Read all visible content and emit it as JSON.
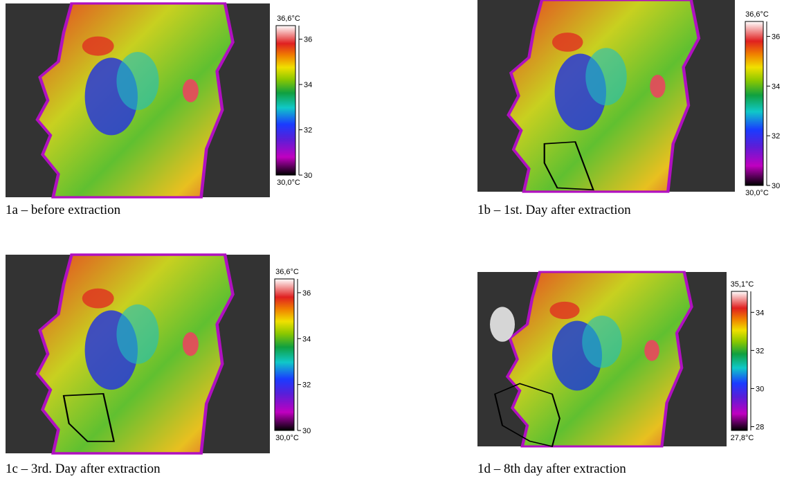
{
  "panels": [
    {
      "caption": "1a – before  extraction",
      "scale": {
        "range": [
          {
            "value": 30.0,
            "label": "30,0°C"
          },
          {
            "value": 36.6,
            "label": "36,6°C"
          }
        ],
        "ticks": [
          30,
          32,
          34,
          36
        ]
      }
    },
    {
      "caption": "1b – 1st. Day after extraction",
      "scale": {
        "range": [
          {
            "value": 30.0,
            "label": "30,0°C"
          },
          {
            "value": 36.6,
            "label": "36,6°C"
          }
        ],
        "ticks": [
          30,
          32,
          34,
          36
        ]
      }
    },
    {
      "caption": "1c – 3rd. Day after extraction",
      "scale": {
        "range": [
          {
            "value": 30.0,
            "label": "30,0°C"
          },
          {
            "value": 36.6,
            "label": "36,6°C"
          }
        ],
        "ticks": [
          30,
          32,
          34,
          36
        ]
      }
    },
    {
      "caption": "1d – 8th day after extraction",
      "scale": {
        "range": [
          {
            "value": 27.8,
            "label": "27,8°C"
          },
          {
            "value": 35.1,
            "label": "35,1°C"
          }
        ],
        "ticks": [
          28,
          30,
          32,
          34
        ]
      }
    }
  ]
}
